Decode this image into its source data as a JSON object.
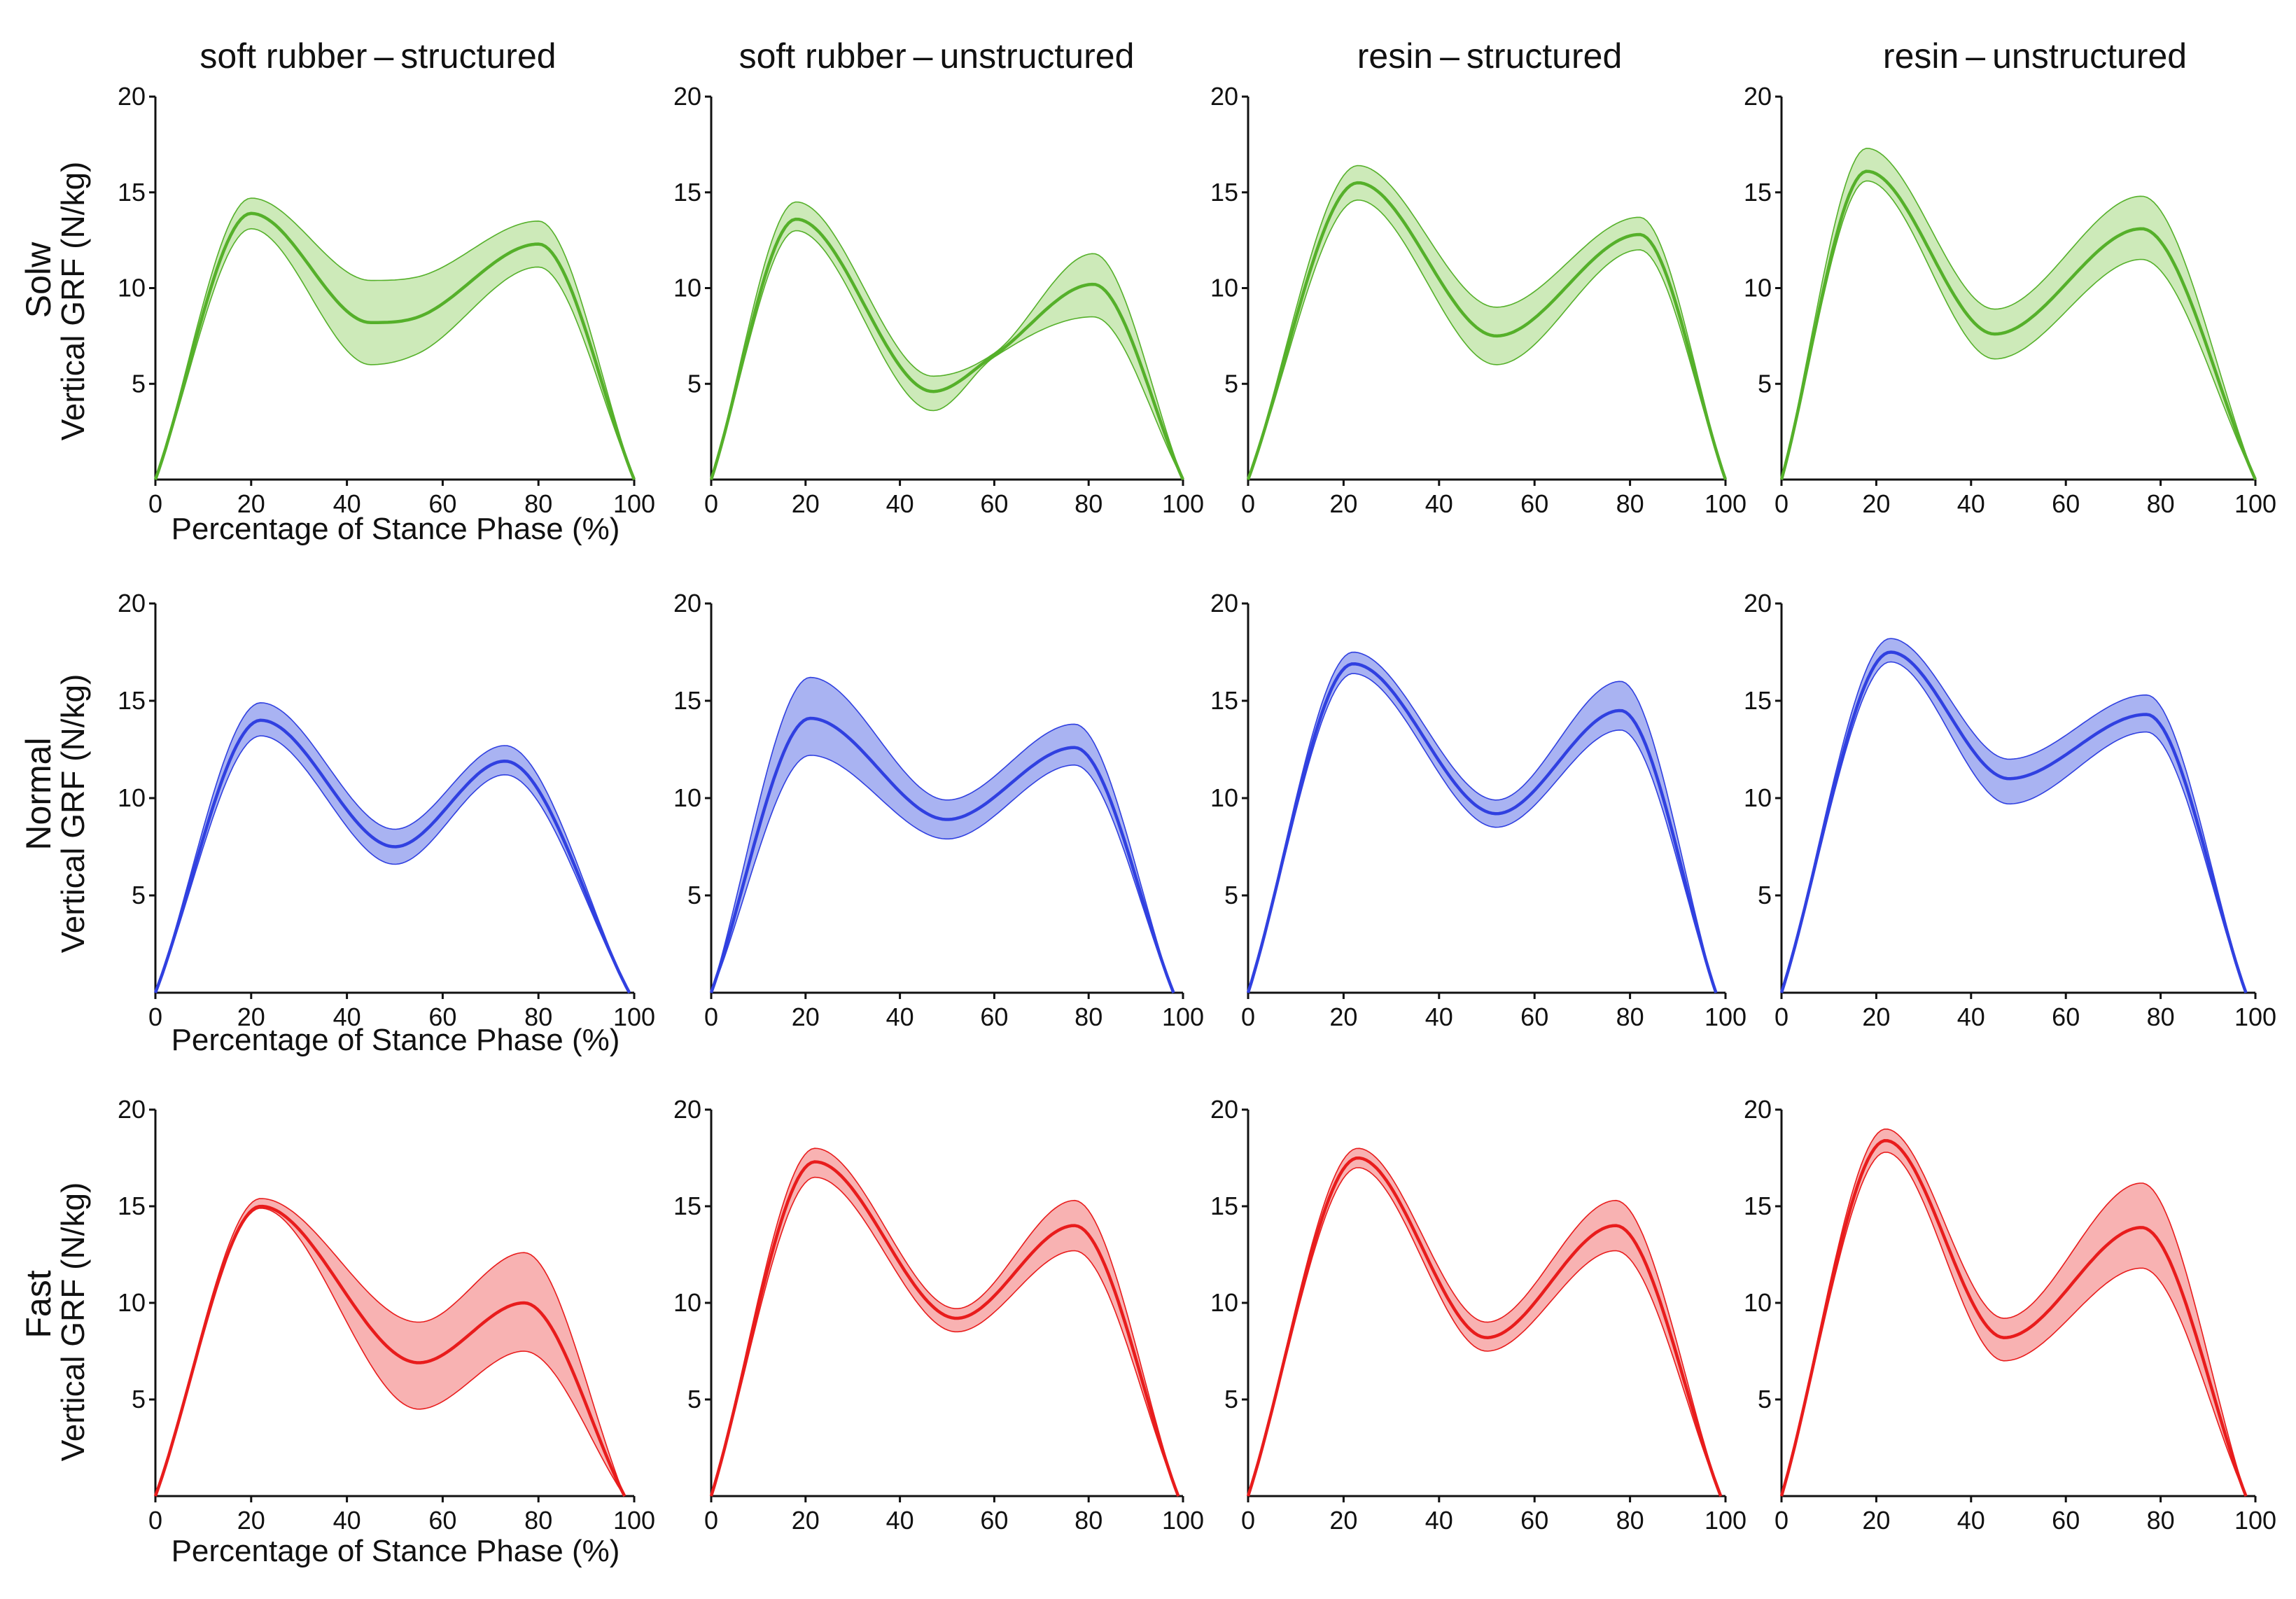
{
  "figure": {
    "column_titles": [
      "soft rubber – structured",
      "soft rubber – unstructured",
      "resin – structured",
      "resin – unstructured"
    ],
    "row_labels": [
      "Solw",
      "Normal",
      "Fast"
    ],
    "ylabel": "Vertical GRF (N/kg)",
    "xlabel": "Percentage of Stance Phase (%)",
    "colors": {
      "Solw": {
        "line": "#55b02a",
        "fill": "#cdeab9"
      },
      "Normal": {
        "line": "#3040e0",
        "fill": "#a9b3f2"
      },
      "Fast": {
        "line": "#e81c1c",
        "fill": "#f8b2b2"
      }
    }
  },
  "chart_data": [
    {
      "type": "area",
      "row": "Solw",
      "column": "soft rubber – structured",
      "xlim": [
        0,
        100
      ],
      "ylim": [
        0,
        20
      ],
      "xticks": [
        0,
        20,
        40,
        60,
        80,
        100
      ],
      "yticks": [
        5,
        10,
        15,
        20
      ],
      "x": [
        0,
        20,
        45,
        55,
        80,
        100
      ],
      "mean": [
        0,
        13.9,
        8.2,
        8.5,
        12.3,
        0
      ],
      "upper": [
        0,
        14.7,
        10.4,
        10.6,
        13.5,
        0
      ],
      "lower": [
        0,
        13.1,
        6.0,
        6.6,
        11.1,
        0
      ]
    },
    {
      "type": "area",
      "row": "Solw",
      "column": "soft rubber – unstructured",
      "xlim": [
        0,
        100
      ],
      "ylim": [
        0,
        20
      ],
      "xticks": [
        0,
        20,
        40,
        60,
        80,
        100
      ],
      "yticks": [
        5,
        10,
        15,
        20
      ],
      "x": [
        0,
        18,
        47,
        60,
        81,
        100
      ],
      "mean": [
        0,
        13.6,
        4.6,
        6.5,
        10.2,
        0
      ],
      "upper": [
        0,
        14.5,
        5.4,
        6.6,
        11.8,
        0
      ],
      "lower": [
        0,
        13.0,
        3.6,
        6.4,
        8.5,
        0
      ]
    },
    {
      "type": "area",
      "row": "Solw",
      "column": "resin – structured",
      "xlim": [
        0,
        100
      ],
      "ylim": [
        0,
        20
      ],
      "xticks": [
        0,
        20,
        40,
        60,
        80,
        100
      ],
      "yticks": [
        5,
        10,
        15,
        20
      ],
      "x": [
        0,
        23,
        52,
        82,
        100
      ],
      "mean": [
        0,
        15.5,
        7.5,
        12.8,
        0
      ],
      "upper": [
        0,
        16.4,
        9.0,
        13.7,
        0
      ],
      "lower": [
        0,
        14.6,
        6.0,
        12.0,
        0
      ]
    },
    {
      "type": "area",
      "row": "Solw",
      "column": "resin – unstructured",
      "xlim": [
        0,
        100
      ],
      "ylim": [
        0,
        20
      ],
      "xticks": [
        0,
        20,
        40,
        60,
        80,
        100
      ],
      "yticks": [
        5,
        10,
        15,
        20
      ],
      "x": [
        0,
        18,
        45,
        76,
        100
      ],
      "mean": [
        0,
        16.1,
        7.6,
        13.1,
        0
      ],
      "upper": [
        0,
        17.3,
        8.9,
        14.8,
        0
      ],
      "lower": [
        0,
        15.6,
        6.3,
        11.5,
        0
      ]
    },
    {
      "type": "area",
      "row": "Normal",
      "column": "soft rubber – structured",
      "xlim": [
        0,
        100
      ],
      "ylim": [
        0,
        20
      ],
      "xticks": [
        0,
        20,
        40,
        60,
        80,
        100
      ],
      "yticks": [
        5,
        10,
        15,
        20
      ],
      "x": [
        0,
        22,
        50,
        73,
        99
      ],
      "mean": [
        0,
        14.0,
        7.5,
        11.9,
        0
      ],
      "upper": [
        0,
        14.9,
        8.4,
        12.7,
        0
      ],
      "lower": [
        0,
        13.2,
        6.6,
        11.2,
        0
      ]
    },
    {
      "type": "area",
      "row": "Normal",
      "column": "soft rubber – unstructured",
      "xlim": [
        0,
        100
      ],
      "ylim": [
        0,
        20
      ],
      "xticks": [
        0,
        20,
        40,
        60,
        80,
        100
      ],
      "yticks": [
        5,
        10,
        15,
        20
      ],
      "x": [
        0,
        21,
        50,
        77,
        98
      ],
      "mean": [
        0,
        14.1,
        8.9,
        12.6,
        0
      ],
      "upper": [
        0,
        16.2,
        9.9,
        13.8,
        0
      ],
      "lower": [
        0,
        12.2,
        7.9,
        11.7,
        0
      ]
    },
    {
      "type": "area",
      "row": "Normal",
      "column": "resin – structured",
      "xlim": [
        0,
        100
      ],
      "ylim": [
        0,
        20
      ],
      "xticks": [
        0,
        20,
        40,
        60,
        80,
        100
      ],
      "yticks": [
        5,
        10,
        15,
        20
      ],
      "x": [
        0,
        22,
        52,
        78,
        98
      ],
      "mean": [
        0,
        16.9,
        9.2,
        14.5,
        0
      ],
      "upper": [
        0,
        17.5,
        9.9,
        16.0,
        0
      ],
      "lower": [
        0,
        16.4,
        8.5,
        13.5,
        0
      ]
    },
    {
      "type": "area",
      "row": "Normal",
      "column": "resin – unstructured",
      "xlim": [
        0,
        100
      ],
      "ylim": [
        0,
        20
      ],
      "xticks": [
        0,
        20,
        40,
        60,
        80,
        100
      ],
      "yticks": [
        5,
        10,
        15,
        20
      ],
      "x": [
        0,
        23,
        48,
        77,
        98
      ],
      "mean": [
        0,
        17.5,
        11.0,
        14.3,
        0
      ],
      "upper": [
        0,
        18.2,
        12.0,
        15.3,
        0
      ],
      "lower": [
        0,
        17.0,
        9.7,
        13.4,
        0
      ]
    },
    {
      "type": "area",
      "row": "Fast",
      "column": "soft rubber – structured",
      "xlim": [
        0,
        100
      ],
      "ylim": [
        0,
        20
      ],
      "xticks": [
        0,
        20,
        40,
        60,
        80,
        100
      ],
      "yticks": [
        5,
        10,
        15,
        20
      ],
      "x": [
        0,
        22,
        55,
        77,
        98
      ],
      "mean": [
        0,
        15.0,
        6.9,
        10.0,
        0
      ],
      "upper": [
        0,
        15.4,
        9.0,
        12.6,
        0
      ],
      "lower": [
        0,
        14.9,
        4.5,
        7.5,
        0
      ]
    },
    {
      "type": "area",
      "row": "Fast",
      "column": "soft rubber – unstructured",
      "xlim": [
        0,
        100
      ],
      "ylim": [
        0,
        20
      ],
      "xticks": [
        0,
        20,
        40,
        60,
        80,
        100
      ],
      "yticks": [
        5,
        10,
        15,
        20
      ],
      "x": [
        0,
        22,
        52,
        77,
        99
      ],
      "mean": [
        0,
        17.3,
        9.2,
        14.0,
        0
      ],
      "upper": [
        0,
        18.0,
        9.7,
        15.3,
        0
      ],
      "lower": [
        0,
        16.5,
        8.5,
        12.7,
        0
      ]
    },
    {
      "type": "area",
      "row": "Fast",
      "column": "resin – structured",
      "xlim": [
        0,
        100
      ],
      "ylim": [
        0,
        20
      ],
      "xticks": [
        0,
        20,
        40,
        60,
        80,
        100
      ],
      "yticks": [
        5,
        10,
        15,
        20
      ],
      "x": [
        0,
        23,
        50,
        77,
        99
      ],
      "mean": [
        0,
        17.5,
        8.2,
        14.0,
        0
      ],
      "upper": [
        0,
        18.0,
        9.0,
        15.3,
        0
      ],
      "lower": [
        0,
        17.0,
        7.5,
        12.7,
        0
      ]
    },
    {
      "type": "area",
      "row": "Fast",
      "column": "resin – unstructured",
      "xlim": [
        0,
        100
      ],
      "ylim": [
        0,
        20
      ],
      "xticks": [
        0,
        20,
        40,
        60,
        80,
        100
      ],
      "yticks": [
        5,
        10,
        15,
        20
      ],
      "x": [
        0,
        22,
        47,
        76,
        98
      ],
      "mean": [
        0,
        18.4,
        8.2,
        13.9,
        0
      ],
      "upper": [
        0,
        19.0,
        9.2,
        16.2,
        0
      ],
      "lower": [
        0,
        17.8,
        7.0,
        11.8,
        0
      ]
    }
  ]
}
